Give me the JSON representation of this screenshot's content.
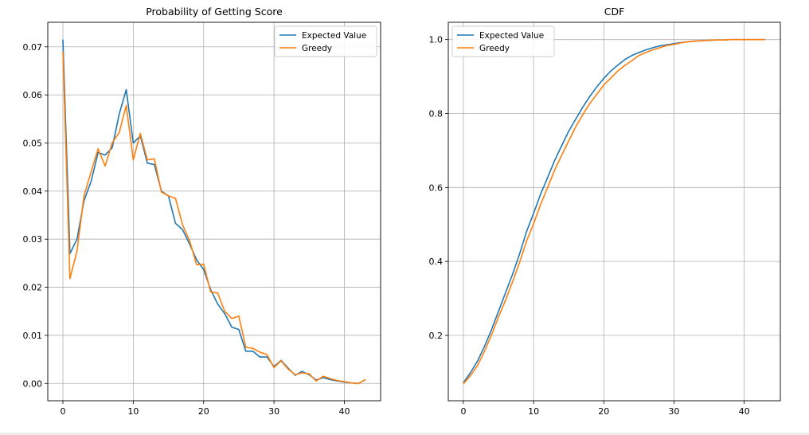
{
  "colors": {
    "expected": "#1f77b4",
    "greedy": "#ff7f0e",
    "grid": "#b0b0b0",
    "frame": "#000000"
  },
  "chart_data": [
    {
      "type": "line",
      "title": "Probability of Getting Score",
      "xlabel": "",
      "ylabel": "",
      "xlim": [
        -2.15,
        45.15
      ],
      "ylim": [
        -0.0036,
        0.0751
      ],
      "xticks": [
        0,
        10,
        20,
        30,
        40
      ],
      "yticks": [
        0.0,
        0.01,
        0.02,
        0.03,
        0.04,
        0.05,
        0.06,
        0.07
      ],
      "ytick_labels": [
        "0.00",
        "0.01",
        "0.02",
        "0.03",
        "0.04",
        "0.05",
        "0.06",
        "0.07"
      ],
      "grid": true,
      "legend_position": "upper right",
      "x": [
        0,
        1,
        2,
        3,
        4,
        5,
        6,
        7,
        8,
        9,
        10,
        11,
        12,
        13,
        14,
        15,
        16,
        17,
        18,
        19,
        20,
        21,
        22,
        23,
        24,
        25,
        26,
        27,
        28,
        29,
        30,
        31,
        32,
        33,
        34,
        35,
        36,
        37,
        38,
        39,
        40,
        41,
        42,
        43
      ],
      "series": [
        {
          "name": "Expected Value",
          "color_key": "expected",
          "values": [
            0.0715,
            0.027,
            0.03,
            0.038,
            0.042,
            0.048,
            0.0475,
            0.049,
            0.056,
            0.0611,
            0.05,
            0.0515,
            0.0458,
            0.0455,
            0.04,
            0.039,
            0.0333,
            0.032,
            0.029,
            0.0257,
            0.0237,
            0.0195,
            0.0165,
            0.0145,
            0.0117,
            0.0112,
            0.0067,
            0.0067,
            0.0055,
            0.0055,
            0.0035,
            0.0048,
            0.0032,
            0.0017,
            0.0025,
            0.0018,
            0.0007,
            0.0012,
            0.0008,
            0.0005,
            0.0003,
            0.0001,
            0.0,
            0.0008
          ]
        },
        {
          "name": "Greedy",
          "color_key": "greedy",
          "values": [
            0.069,
            0.0218,
            0.0275,
            0.039,
            0.044,
            0.0488,
            0.0452,
            0.05,
            0.0522,
            0.0578,
            0.0465,
            0.052,
            0.0465,
            0.0467,
            0.0398,
            0.039,
            0.0385,
            0.033,
            0.0297,
            0.0247,
            0.0248,
            0.019,
            0.0188,
            0.015,
            0.0135,
            0.014,
            0.0075,
            0.0073,
            0.0065,
            0.006,
            0.0033,
            0.0047,
            0.003,
            0.0018,
            0.0022,
            0.002,
            0.0005,
            0.0015,
            0.001,
            0.0006,
            0.0004,
            0.0001,
            0.0,
            0.0008
          ]
        }
      ]
    },
    {
      "type": "line",
      "title": "CDF",
      "xlabel": "",
      "ylabel": "",
      "xlim": [
        -2.15,
        45.15
      ],
      "ylim": [
        0.0233,
        1.0467
      ],
      "xticks": [
        0,
        10,
        20,
        30,
        40
      ],
      "yticks": [
        0.2,
        0.4,
        0.6,
        0.8,
        1.0
      ],
      "ytick_labels": [
        "0.2",
        "0.4",
        "0.6",
        "0.8",
        "1.0"
      ],
      "grid": true,
      "legend_position": "upper left",
      "x": [
        0,
        1,
        2,
        3,
        4,
        5,
        6,
        7,
        8,
        9,
        10,
        11,
        12,
        13,
        14,
        15,
        16,
        17,
        18,
        19,
        20,
        21,
        22,
        23,
        24,
        25,
        26,
        27,
        28,
        29,
        30,
        31,
        32,
        33,
        34,
        35,
        36,
        37,
        38,
        39,
        40,
        41,
        42,
        43
      ],
      "series": [
        {
          "name": "Expected Value",
          "color_key": "expected",
          "values": [
            0.072,
            0.099,
            0.13,
            0.17,
            0.215,
            0.265,
            0.315,
            0.365,
            0.42,
            0.481,
            0.53,
            0.582,
            0.627,
            0.673,
            0.713,
            0.752,
            0.785,
            0.817,
            0.846,
            0.872,
            0.895,
            0.915,
            0.931,
            0.946,
            0.957,
            0.965,
            0.972,
            0.978,
            0.983,
            0.986,
            0.989,
            0.992,
            0.994,
            0.996,
            0.997,
            0.998,
            0.999,
            0.999,
            1.0,
            1.0,
            1.0,
            1.0,
            1.0,
            1.0
          ]
        },
        {
          "name": "Greedy",
          "color_key": "greedy",
          "values": [
            0.069,
            0.091,
            0.118,
            0.157,
            0.201,
            0.25,
            0.295,
            0.345,
            0.397,
            0.455,
            0.502,
            0.554,
            0.6,
            0.647,
            0.687,
            0.726,
            0.764,
            0.797,
            0.827,
            0.852,
            0.877,
            0.896,
            0.915,
            0.93,
            0.943,
            0.957,
            0.965,
            0.972,
            0.978,
            0.984,
            0.987,
            0.991,
            0.994,
            0.996,
            0.997,
            0.998,
            0.999,
            0.999,
            1.0,
            1.0,
            1.0,
            1.0,
            1.0,
            1.0
          ]
        }
      ]
    }
  ]
}
